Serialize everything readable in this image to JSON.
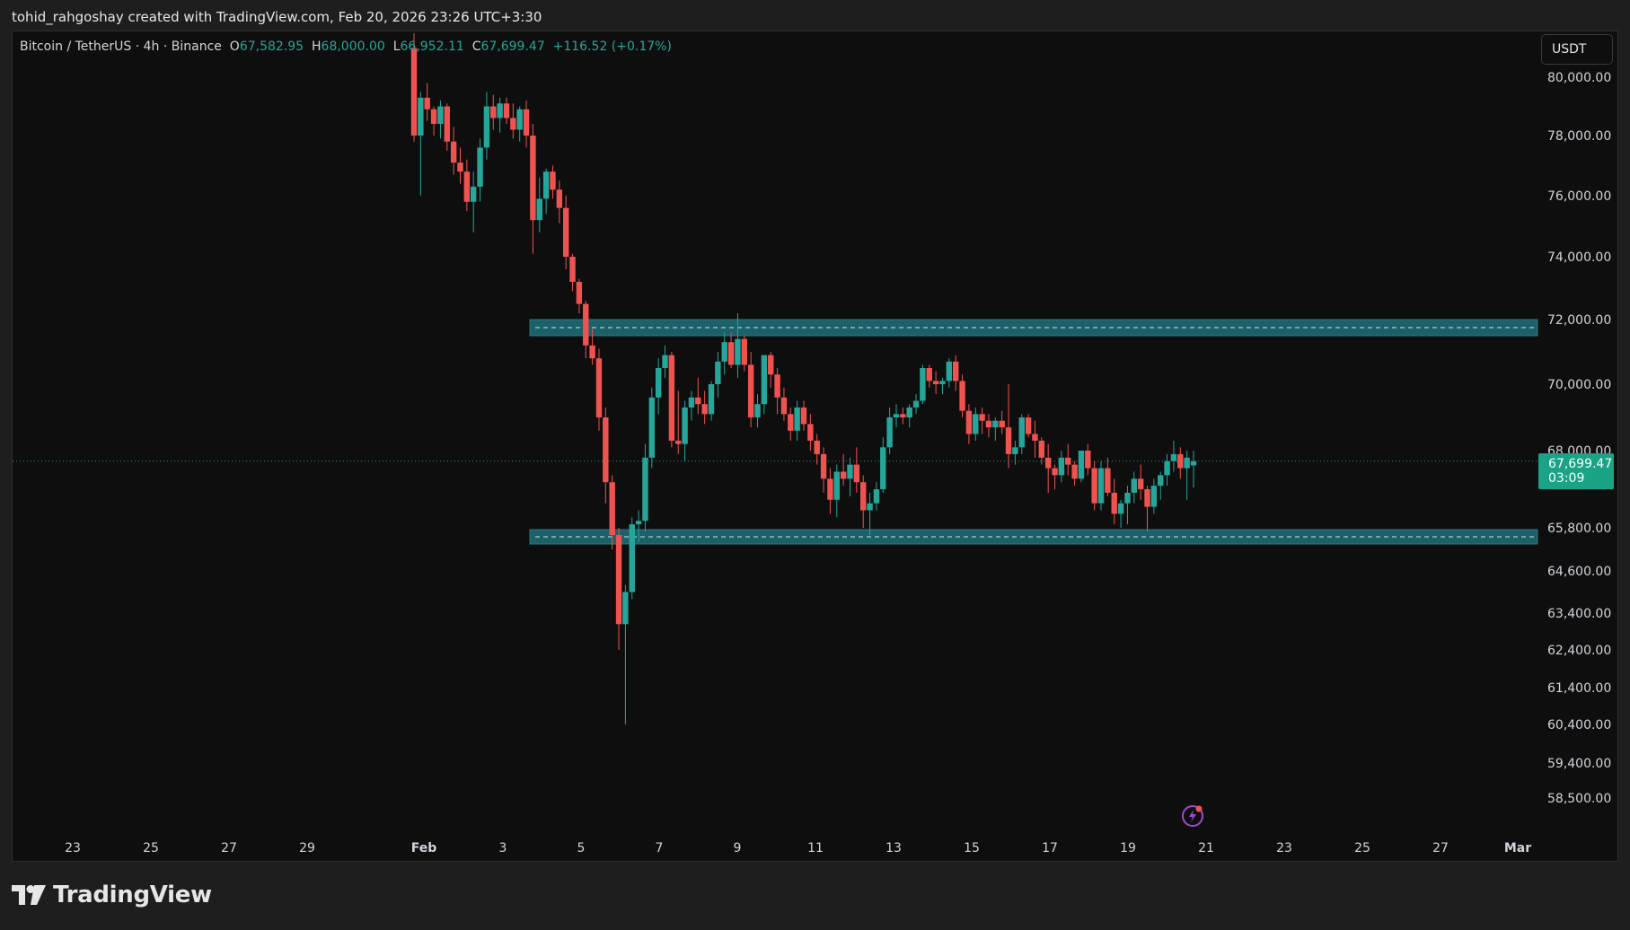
{
  "header": {
    "caption": "tohid_rahgoshay created with TradingView.com, Feb 20, 2026 23:26 UTC+3:30"
  },
  "legend": {
    "symbol": "Bitcoin / TetherUS · 4h · Binance",
    "open_label": "O",
    "open": "67,582.95",
    "high_label": "H",
    "high": "68,000.00",
    "low_label": "L",
    "low": "66,952.11",
    "close_label": "C",
    "close": "67,699.47",
    "change": "+116.52 (+0.17%)"
  },
  "currency_button": {
    "label": "USDT"
  },
  "last_price": {
    "price": "67,699.47",
    "countdown": "03:09",
    "color": "#1aa385"
  },
  "branding": {
    "name": "TradingView"
  },
  "icons": {
    "flash": "flash-icon",
    "logo": "tradingview-logo-icon"
  },
  "colors": {
    "up": "#26a69a",
    "down": "#ef5350",
    "zone": "#1f6f7a",
    "background": "#0e0e0e"
  },
  "chart_data": {
    "type": "candlestick",
    "interval": "4h",
    "y_tick_labels": [
      "80,000.00",
      "78,000.00",
      "76,000.00",
      "74,000.00",
      "72,000.00",
      "70,000.00",
      "68,000.00",
      "65,800.00",
      "64,600.00",
      "63,400.00",
      "62,400.00",
      "61,400.00",
      "60,400.00",
      "59,400.00",
      "58,500.00"
    ],
    "y_ticks": [
      80000,
      78000,
      76000,
      74000,
      72000,
      70000,
      68000,
      65800,
      64600,
      63400,
      62400,
      61400,
      60400,
      59400,
      58500
    ],
    "x_tick_labels": [
      "23",
      "25",
      "27",
      "29",
      "Feb",
      "3",
      "5",
      "7",
      "9",
      "11",
      "13",
      "15",
      "17",
      "19",
      "21",
      "23",
      "25",
      "27",
      "Mar"
    ],
    "zones": [
      {
        "low": 71500,
        "high": 72000,
        "dashed_mid": 71750
      },
      {
        "low": 65400,
        "high": 65750,
        "dashed_mid": 65580
      }
    ],
    "candles": [
      [
        81000,
        81500,
        77800,
        78000
      ],
      [
        78000,
        79500,
        76000,
        79300
      ],
      [
        79300,
        79800,
        78500,
        78900
      ],
      [
        78900,
        79000,
        78000,
        78400
      ],
      [
        78400,
        79200,
        77900,
        79000
      ],
      [
        79000,
        79100,
        77500,
        77800
      ],
      [
        77800,
        78300,
        76700,
        77100
      ],
      [
        77100,
        77600,
        76400,
        76800
      ],
      [
        76800,
        77200,
        75500,
        75800
      ],
      [
        75800,
        76800,
        74800,
        76300
      ],
      [
        76300,
        77900,
        75800,
        77600
      ],
      [
        77600,
        79500,
        77200,
        79000
      ],
      [
        79000,
        79400,
        78200,
        78600
      ],
      [
        78600,
        79300,
        78100,
        79100
      ],
      [
        79100,
        79300,
        78400,
        78600
      ],
      [
        78600,
        79100,
        77900,
        78200
      ],
      [
        78200,
        79000,
        77800,
        78900
      ],
      [
        78900,
        79200,
        77600,
        78000
      ],
      [
        78000,
        78400,
        74100,
        75200
      ],
      [
        75200,
        76600,
        74800,
        75900
      ],
      [
        75900,
        76900,
        75400,
        76800
      ],
      [
        76800,
        77000,
        75900,
        76200
      ],
      [
        76200,
        76500,
        75100,
        75600
      ],
      [
        75600,
        76000,
        73600,
        74000
      ],
      [
        74000,
        74100,
        72900,
        73200
      ],
      [
        73200,
        73300,
        72200,
        72500
      ],
      [
        72500,
        72600,
        70800,
        71200
      ],
      [
        71200,
        71700,
        70600,
        70800
      ],
      [
        70800,
        71100,
        68600,
        69000
      ],
      [
        69000,
        69300,
        66500,
        67100
      ],
      [
        67100,
        67300,
        65200,
        65600
      ],
      [
        65600,
        65800,
        62400,
        63100
      ],
      [
        63100,
        64200,
        60400,
        64000
      ],
      [
        64000,
        66100,
        63800,
        65900
      ],
      [
        65900,
        66300,
        65400,
        66000
      ],
      [
        66000,
        68200,
        65700,
        67800
      ],
      [
        67800,
        69900,
        67500,
        69600
      ],
      [
        69600,
        70800,
        69100,
        70500
      ],
      [
        70500,
        71200,
        70200,
        70900
      ],
      [
        70900,
        71000,
        68100,
        68300
      ],
      [
        68300,
        69800,
        67900,
        68200
      ],
      [
        68200,
        69500,
        67700,
        69300
      ],
      [
        69300,
        69800,
        68900,
        69600
      ],
      [
        69600,
        70200,
        69100,
        69400
      ],
      [
        69400,
        69800,
        68800,
        69100
      ],
      [
        69100,
        70100,
        68900,
        70000
      ],
      [
        70000,
        71000,
        69600,
        70700
      ],
      [
        70700,
        71600,
        70300,
        71300
      ],
      [
        71300,
        71600,
        70500,
        70600
      ],
      [
        70600,
        72200,
        70200,
        71400
      ],
      [
        71400,
        71500,
        70400,
        70600
      ],
      [
        70600,
        71000,
        68700,
        69000
      ],
      [
        69000,
        69700,
        68700,
        69400
      ],
      [
        69400,
        70900,
        69100,
        70900
      ],
      [
        70900,
        71000,
        69900,
        70300
      ],
      [
        70300,
        70500,
        69100,
        69600
      ],
      [
        69600,
        69900,
        68900,
        69100
      ],
      [
        69100,
        69300,
        68300,
        68600
      ],
      [
        68600,
        69500,
        68300,
        69300
      ],
      [
        69300,
        69500,
        68600,
        68800
      ],
      [
        68800,
        69100,
        68000,
        68300
      ],
      [
        68300,
        68500,
        67600,
        67900
      ],
      [
        67900,
        68100,
        66800,
        67200
      ],
      [
        67200,
        67500,
        66200,
        66600
      ],
      [
        66600,
        67600,
        66100,
        67400
      ],
      [
        67400,
        67900,
        67000,
        67200
      ],
      [
        67200,
        67800,
        66700,
        67600
      ],
      [
        67600,
        68100,
        66800,
        67100
      ],
      [
        67100,
        67300,
        65800,
        66300
      ],
      [
        66300,
        66800,
        65600,
        66500
      ],
      [
        66500,
        67100,
        66300,
        66900
      ],
      [
        66900,
        68400,
        66800,
        68100
      ],
      [
        68100,
        69300,
        67900,
        69000
      ],
      [
        69000,
        69400,
        68700,
        69100
      ],
      [
        69100,
        69300,
        68800,
        69000
      ],
      [
        69000,
        69400,
        68700,
        69300
      ],
      [
        69300,
        69700,
        69100,
        69500
      ],
      [
        69500,
        70600,
        69400,
        70500
      ],
      [
        70500,
        70600,
        69900,
        70100
      ],
      [
        70100,
        70400,
        69700,
        70000
      ],
      [
        70000,
        70200,
        69700,
        70100
      ],
      [
        70100,
        70800,
        69900,
        70700
      ],
      [
        70700,
        70900,
        69800,
        70100
      ],
      [
        70100,
        70300,
        69000,
        69200
      ],
      [
        69200,
        69400,
        68200,
        68500
      ],
      [
        68500,
        69300,
        68300,
        69100
      ],
      [
        69100,
        69300,
        68500,
        68900
      ],
      [
        68900,
        69100,
        68400,
        68700
      ],
      [
        68700,
        69000,
        68300,
        68900
      ],
      [
        68900,
        69200,
        68500,
        68700
      ],
      [
        68700,
        70000,
        67500,
        67900
      ],
      [
        67900,
        68300,
        67600,
        68100
      ],
      [
        68100,
        69100,
        67900,
        69000
      ],
      [
        69000,
        69100,
        68400,
        68500
      ],
      [
        68500,
        68900,
        67800,
        68300
      ],
      [
        68300,
        68400,
        67600,
        67800
      ],
      [
        67800,
        68200,
        66800,
        67500
      ],
      [
        67500,
        67600,
        66900,
        67300
      ],
      [
        67300,
        68000,
        67100,
        67800
      ],
      [
        67800,
        68200,
        67300,
        67600
      ],
      [
        67600,
        67700,
        67000,
        67200
      ],
      [
        67200,
        68000,
        67100,
        68000
      ],
      [
        68000,
        68200,
        67300,
        67500
      ],
      [
        67500,
        67700,
        66300,
        66500
      ],
      [
        66500,
        67700,
        66300,
        67500
      ],
      [
        67500,
        67800,
        66700,
        66800
      ],
      [
        66800,
        67200,
        65900,
        66200
      ],
      [
        66200,
        66600,
        65800,
        66500
      ],
      [
        66500,
        67000,
        65900,
        66800
      ],
      [
        66800,
        67400,
        66500,
        67200
      ],
      [
        67200,
        67600,
        66600,
        66900
      ],
      [
        66900,
        67000,
        65700,
        66400
      ],
      [
        66400,
        67200,
        66200,
        67000
      ],
      [
        67000,
        67400,
        66600,
        67300
      ],
      [
        67300,
        67900,
        67000,
        67700
      ],
      [
        67700,
        68300,
        67400,
        67900
      ],
      [
        67900,
        68100,
        67200,
        67500
      ],
      [
        67500,
        68000,
        66600,
        67800
      ],
      [
        67580,
        68000,
        66950,
        67699
      ]
    ]
  }
}
